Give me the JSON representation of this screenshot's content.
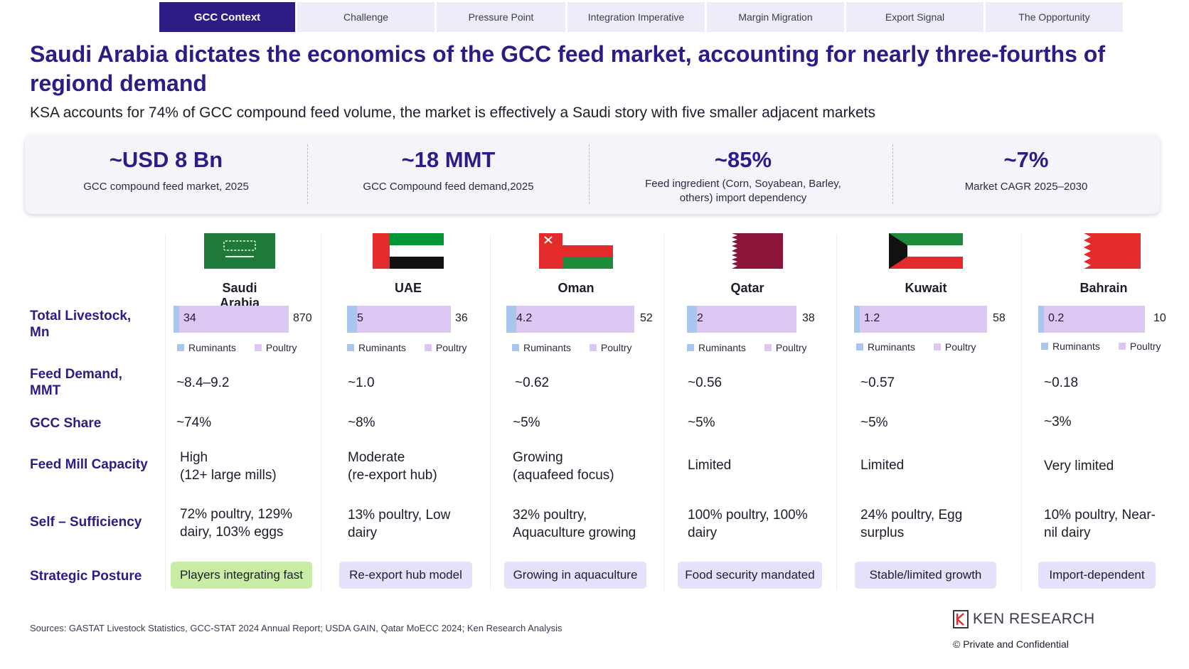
{
  "tabs": [
    "GCC Context",
    "Challenge",
    "Pressure Point",
    "Integration Imperative",
    "Margin Migration",
    "Export Signal",
    "The Opportunity"
  ],
  "title": "Saudi Arabia dictates the economics of the GCC feed market, accounting for nearly three-fourths of regiond demand",
  "subtitle": "KSA accounts for 74% of GCC compound feed volume, the market is effectively a Saudi story with five smaller adjacent markets",
  "kpis": [
    {
      "value": "~USD 8 Bn",
      "label": "GCC compound feed market, 2025"
    },
    {
      "value": "~18 MMT",
      "label": "GCC Compound feed demand,2025"
    },
    {
      "value": "~85%",
      "label": "Feed ingredient (Corn, Soyabean, Barley, others) import dependency"
    },
    {
      "value": "~7%",
      "label": "Market CAGR 2025–2030"
    }
  ],
  "row_labels": {
    "livestock": "Total Livestock, Mn",
    "feed_demand": "Feed Demand, MMT",
    "gcc_share": "GCC Share",
    "capacity": "Feed Mill Capacity",
    "self_sufficiency": "Self – Sufficiency",
    "posture": "Strategic Posture"
  },
  "legend": {
    "ruminants": "Ruminants",
    "poultry": "Poultry"
  },
  "colors": {
    "accent": "#2e1b86",
    "ruminants": "#a9c7ee",
    "poultry": "#dcc6f2",
    "pill": "#e4e2fb",
    "pill_green": "#c8eca4"
  },
  "countries": [
    {
      "name": "Saudi Arabia",
      "flag": "saudi-flag",
      "ruminants": "34",
      "total": "870",
      "feed_demand": "~8.4–9.2",
      "gcc_share": "~74%",
      "capacity": "High\n(12+ large mills)",
      "self_sufficiency": "72% poultry, 129% dairy, 103% eggs",
      "posture": "Players integrating fast",
      "posture_green": true
    },
    {
      "name": "UAE",
      "flag": "uae-flag",
      "ruminants": "5",
      "total": "36",
      "feed_demand": "~1.0",
      "gcc_share": "~8%",
      "capacity": "Moderate\n(re-export hub)",
      "self_sufficiency": "13% poultry, Low dairy",
      "posture": "Re-export hub model",
      "posture_green": false
    },
    {
      "name": "Oman",
      "flag": "oman-flag",
      "ruminants": "4.2",
      "total": "52",
      "feed_demand": "~0.62",
      "gcc_share": "~5%",
      "capacity": "Growing\n(aquafeed focus)",
      "self_sufficiency": "32% poultry, Aquaculture growing",
      "posture": "Growing in aquaculture",
      "posture_green": false
    },
    {
      "name": "Qatar",
      "flag": "qatar-flag",
      "ruminants": "2",
      "total": "38",
      "feed_demand": "~0.56",
      "gcc_share": "~5%",
      "capacity": "Limited",
      "self_sufficiency": "100% poultry, 100% dairy",
      "posture": "Food security mandated",
      "posture_green": false
    },
    {
      "name": "Kuwait",
      "flag": "kuwait-flag",
      "ruminants": "1.2",
      "total": "58",
      "feed_demand": "~0.57",
      "gcc_share": "~5%",
      "capacity": "Limited",
      "self_sufficiency": "24% poultry, Egg surplus",
      "posture": "Stable/limited growth",
      "posture_green": false
    },
    {
      "name": "Bahrain",
      "flag": "bahrain-flag",
      "ruminants": "0.2",
      "total": "10",
      "feed_demand": "~0.18",
      "gcc_share": "~3%",
      "capacity": "Very limited",
      "self_sufficiency": "10% poultry, Near-nil dairy",
      "posture": "Import-dependent",
      "posture_green": false
    }
  ],
  "sources": "Sources: GASTAT Livestock Statistics, GCC-STAT 2024 Annual Report; USDA GAIN, Qatar MoECC 2024; Ken Research Analysis",
  "logo": "KEN RESEARCH",
  "confidential": "©   Private and Confidential"
}
